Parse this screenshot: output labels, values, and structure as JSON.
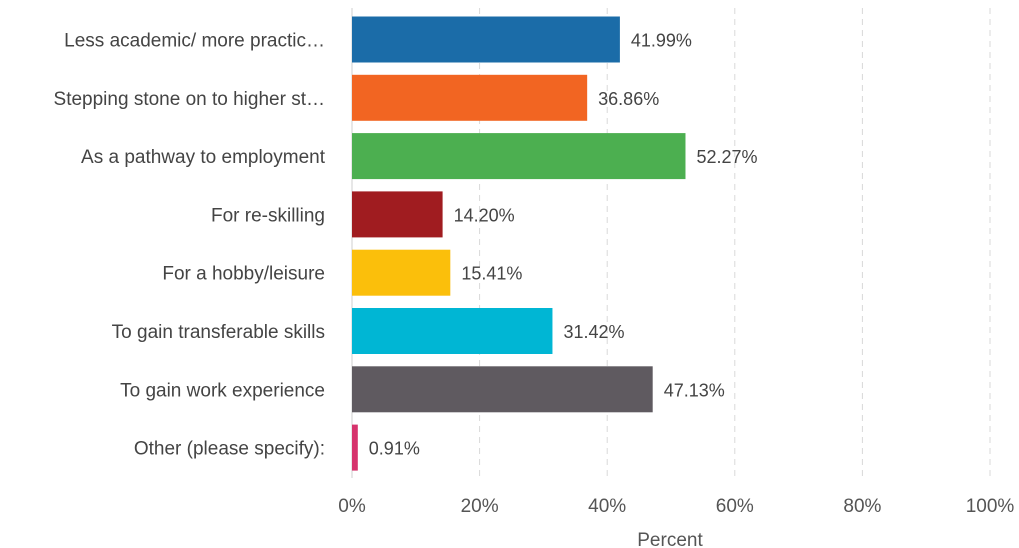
{
  "chart_data": {
    "type": "bar",
    "orientation": "horizontal",
    "categories": [
      "Less academic/ more practic…",
      "Stepping stone on to higher st…",
      "As a pathway to employment",
      "For re-skilling",
      "For a hobby/leisure",
      "To gain transferable skills",
      "To gain work experience",
      "Other (please specify):"
    ],
    "values": [
      41.99,
      36.86,
      52.27,
      14.2,
      15.41,
      31.42,
      47.13,
      0.91
    ],
    "value_labels": [
      "41.99%",
      "36.86%",
      "52.27%",
      "14.20%",
      "15.41%",
      "31.42%",
      "47.13%",
      "0.91%"
    ],
    "colors": [
      "#1b6ca8",
      "#f26522",
      "#4caf50",
      "#a01c20",
      "#fbbf0b",
      "#00b6d4",
      "#5f5a60",
      "#d6336c"
    ],
    "xlim": [
      0,
      100
    ],
    "xticks": [
      0,
      20,
      40,
      60,
      80,
      100
    ],
    "xtick_labels": [
      "0%",
      "20%",
      "40%",
      "60%",
      "80%",
      "100%"
    ],
    "xlabel": "Percent",
    "grid": "vertical dashed"
  }
}
